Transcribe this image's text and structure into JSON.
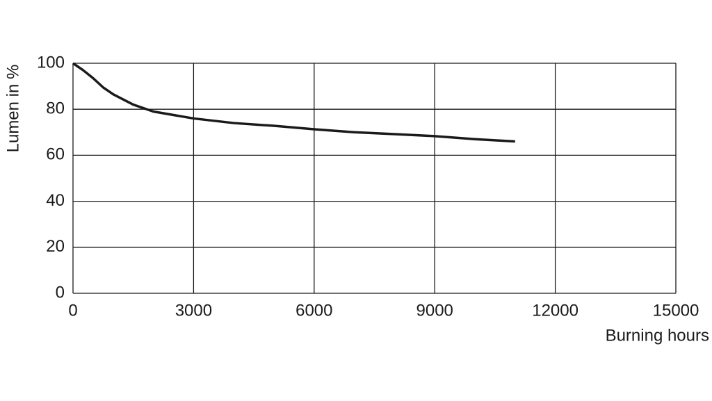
{
  "chart_data": {
    "type": "line",
    "x_label": "Burning hours",
    "y_label": "Lumen in %",
    "x": [
      0,
      250,
      500,
      750,
      1000,
      1500,
      2000,
      3000,
      4000,
      5000,
      6000,
      7000,
      8000,
      9000,
      10000,
      11000
    ],
    "series": [
      {
        "name": "Lumen",
        "color": "#1a1a1a",
        "values": [
          100,
          97,
          93.5,
          89.5,
          86.5,
          82,
          79,
          76,
          74,
          72.8,
          71.3,
          70,
          69.2,
          68.3,
          67,
          66
        ]
      }
    ],
    "xlim": [
      0,
      15000
    ],
    "xticks": [
      0,
      3000,
      6000,
      9000,
      12000,
      15000
    ],
    "ylim": [
      0,
      100
    ],
    "yticks": [
      0,
      20,
      40,
      60,
      80,
      100
    ],
    "grid": true
  }
}
